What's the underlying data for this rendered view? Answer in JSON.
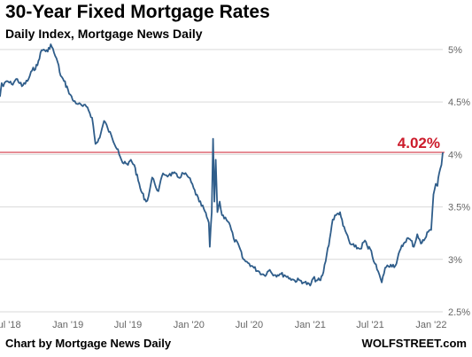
{
  "title": "30-Year Fixed Mortgage Rates",
  "subtitle": "Daily Index, Mortgage News Daily",
  "footer": {
    "credit": "Chart by Mortgage News Daily",
    "brand": "WOLFSTREET.com"
  },
  "colors": {
    "line": "#2f5d8a",
    "reference": "#cc1b2b",
    "grid": "#d9d9d9"
  },
  "chart_data": {
    "type": "line",
    "title": "30-Year Fixed Mortgage Rates",
    "subtitle": "Daily Index, Mortgage News Daily",
    "xlabel": "",
    "ylabel": "",
    "ylim": [
      2.5,
      5.05
    ],
    "xlim": [
      "2018-06-10",
      "2022-02-05"
    ],
    "y_ticks": [
      {
        "value": 5,
        "label": "5%"
      },
      {
        "value": 4.5,
        "label": "4.5%"
      },
      {
        "value": 4,
        "label": "4%"
      },
      {
        "value": 3.5,
        "label": "3.5%"
      },
      {
        "value": 3,
        "label": "3%"
      },
      {
        "value": 2.5,
        "label": "2.5%"
      }
    ],
    "x_ticks": [
      {
        "value": "2018-07-01",
        "label": "Jul '18"
      },
      {
        "value": "2019-01-01",
        "label": "Jan '19"
      },
      {
        "value": "2019-07-01",
        "label": "Jul '19"
      },
      {
        "value": "2020-01-01",
        "label": "Jan '20"
      },
      {
        "value": "2020-07-01",
        "label": "Jul '20"
      },
      {
        "value": "2021-01-01",
        "label": "Jan '21"
      },
      {
        "value": "2021-07-01",
        "label": "Jul '21"
      },
      {
        "value": "2022-01-01",
        "label": "Jan '22"
      }
    ],
    "grid": "horizontal",
    "reference_line": {
      "value": 4.02,
      "label": "4.02%"
    },
    "series": [
      {
        "points": [
          [
            "2018-06-10",
            4.55
          ],
          [
            "2018-06-15",
            4.68
          ],
          [
            "2018-06-20",
            4.65
          ],
          [
            "2018-07-01",
            4.7
          ],
          [
            "2018-07-15",
            4.67
          ],
          [
            "2018-08-01",
            4.72
          ],
          [
            "2018-08-15",
            4.65
          ],
          [
            "2018-09-01",
            4.7
          ],
          [
            "2018-09-15",
            4.8
          ],
          [
            "2018-10-01",
            4.85
          ],
          [
            "2018-10-10",
            4.97
          ],
          [
            "2018-10-20",
            5.0
          ],
          [
            "2018-11-01",
            4.98
          ],
          [
            "2018-11-10",
            5.05
          ],
          [
            "2018-11-20",
            4.97
          ],
          [
            "2018-12-01",
            4.88
          ],
          [
            "2018-12-10",
            4.75
          ],
          [
            "2018-12-20",
            4.7
          ],
          [
            "2019-01-01",
            4.62
          ],
          [
            "2019-01-15",
            4.52
          ],
          [
            "2019-02-01",
            4.48
          ],
          [
            "2019-02-15",
            4.46
          ],
          [
            "2019-03-01",
            4.45
          ],
          [
            "2019-03-15",
            4.35
          ],
          [
            "2019-03-25",
            4.1
          ],
          [
            "2019-04-01",
            4.12
          ],
          [
            "2019-04-10",
            4.2
          ],
          [
            "2019-04-20",
            4.32
          ],
          [
            "2019-05-01",
            4.25
          ],
          [
            "2019-05-15",
            4.15
          ],
          [
            "2019-06-01",
            4.05
          ],
          [
            "2019-06-15",
            3.92
          ],
          [
            "2019-07-01",
            3.9
          ],
          [
            "2019-07-10",
            3.95
          ],
          [
            "2019-07-20",
            3.9
          ],
          [
            "2019-08-01",
            3.75
          ],
          [
            "2019-08-10",
            3.65
          ],
          [
            "2019-08-25",
            3.55
          ],
          [
            "2019-09-01",
            3.6
          ],
          [
            "2019-09-12",
            3.78
          ],
          [
            "2019-09-20",
            3.72
          ],
          [
            "2019-10-01",
            3.65
          ],
          [
            "2019-10-15",
            3.82
          ],
          [
            "2019-11-01",
            3.8
          ],
          [
            "2019-11-15",
            3.82
          ],
          [
            "2019-12-01",
            3.78
          ],
          [
            "2019-12-15",
            3.82
          ],
          [
            "2020-01-01",
            3.78
          ],
          [
            "2020-01-15",
            3.68
          ],
          [
            "2020-02-01",
            3.55
          ],
          [
            "2020-02-15",
            3.48
          ],
          [
            "2020-03-01",
            3.35
          ],
          [
            "2020-03-04",
            3.12
          ],
          [
            "2020-03-10",
            3.45
          ],
          [
            "2020-03-14",
            4.15
          ],
          [
            "2020-03-18",
            3.55
          ],
          [
            "2020-03-22",
            3.95
          ],
          [
            "2020-03-27",
            3.45
          ],
          [
            "2020-04-03",
            3.55
          ],
          [
            "2020-04-10",
            3.42
          ],
          [
            "2020-04-20",
            3.4
          ],
          [
            "2020-05-01",
            3.35
          ],
          [
            "2020-05-15",
            3.2
          ],
          [
            "2020-06-01",
            3.12
          ],
          [
            "2020-06-10",
            3.02
          ],
          [
            "2020-06-20",
            2.98
          ],
          [
            "2020-07-01",
            2.96
          ],
          [
            "2020-07-15",
            2.92
          ],
          [
            "2020-08-01",
            2.88
          ],
          [
            "2020-08-15",
            2.85
          ],
          [
            "2020-09-01",
            2.9
          ],
          [
            "2020-09-15",
            2.85
          ],
          [
            "2020-10-01",
            2.86
          ],
          [
            "2020-10-15",
            2.85
          ],
          [
            "2020-11-01",
            2.82
          ],
          [
            "2020-11-15",
            2.8
          ],
          [
            "2020-12-01",
            2.8
          ],
          [
            "2020-12-15",
            2.78
          ],
          [
            "2021-01-01",
            2.75
          ],
          [
            "2021-01-10",
            2.82
          ],
          [
            "2021-01-20",
            2.8
          ],
          [
            "2021-02-01",
            2.8
          ],
          [
            "2021-02-10",
            2.88
          ],
          [
            "2021-02-20",
            3.05
          ],
          [
            "2021-03-01",
            3.2
          ],
          [
            "2021-03-10",
            3.38
          ],
          [
            "2021-03-20",
            3.42
          ],
          [
            "2021-04-01",
            3.45
          ],
          [
            "2021-04-10",
            3.32
          ],
          [
            "2021-04-20",
            3.25
          ],
          [
            "2021-05-01",
            3.15
          ],
          [
            "2021-05-15",
            3.12
          ],
          [
            "2021-06-01",
            3.1
          ],
          [
            "2021-06-15",
            3.18
          ],
          [
            "2021-06-25",
            3.1
          ],
          [
            "2021-07-01",
            3.1
          ],
          [
            "2021-07-15",
            2.96
          ],
          [
            "2021-08-01",
            2.82
          ],
          [
            "2021-08-05",
            2.78
          ],
          [
            "2021-08-15",
            2.92
          ],
          [
            "2021-09-01",
            2.95
          ],
          [
            "2021-09-15",
            2.94
          ],
          [
            "2021-10-01",
            3.1
          ],
          [
            "2021-10-10",
            3.15
          ],
          [
            "2021-10-20",
            3.2
          ],
          [
            "2021-11-01",
            3.18
          ],
          [
            "2021-11-10",
            3.12
          ],
          [
            "2021-11-20",
            3.24
          ],
          [
            "2021-12-01",
            3.15
          ],
          [
            "2021-12-10",
            3.18
          ],
          [
            "2021-12-20",
            3.26
          ],
          [
            "2022-01-01",
            3.28
          ],
          [
            "2022-01-05",
            3.48
          ],
          [
            "2022-01-08",
            3.62
          ],
          [
            "2022-01-15",
            3.72
          ],
          [
            "2022-01-20",
            3.7
          ],
          [
            "2022-01-25",
            3.82
          ],
          [
            "2022-02-01",
            3.9
          ],
          [
            "2022-02-05",
            4.02
          ]
        ]
      }
    ]
  }
}
